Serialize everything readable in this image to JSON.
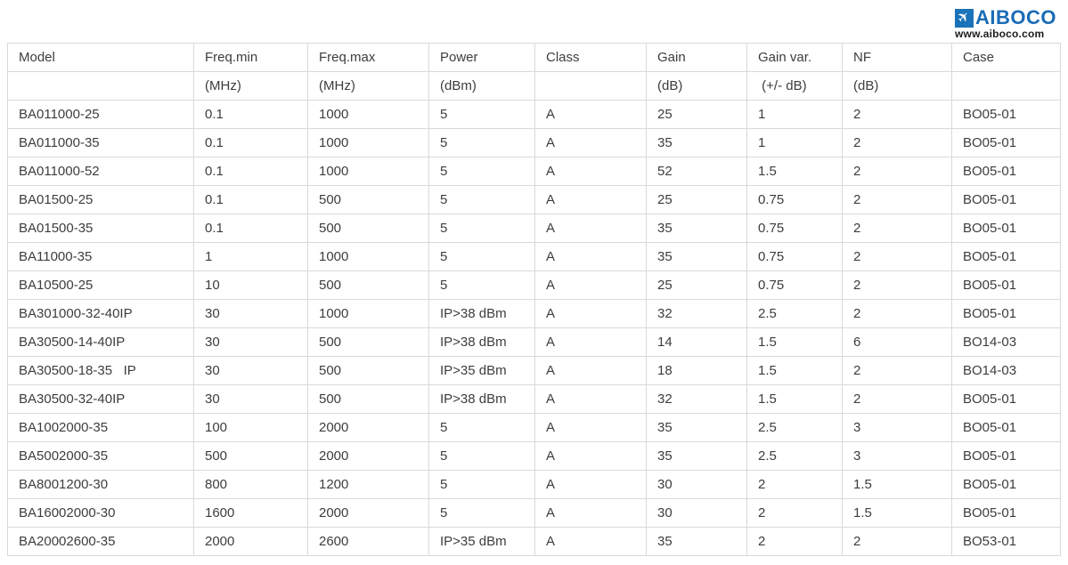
{
  "logo": {
    "brand": "AIBOCO",
    "website": "www.aiboco.com",
    "airplane_icon": "✈",
    "brand_color": "#1a6cb5",
    "mark_background": "#1a72b8"
  },
  "table": {
    "columns": [
      {
        "label": "Model",
        "unit": ""
      },
      {
        "label": "Freq.min",
        "unit": "(MHz)"
      },
      {
        "label": "Freq.max",
        "unit": "(MHz)"
      },
      {
        "label": "Power",
        "unit": "(dBm)"
      },
      {
        "label": "Class",
        "unit": ""
      },
      {
        "label": "Gain",
        "unit": "(dB)"
      },
      {
        "label": "Gain var.",
        "unit": " (+/- dB)"
      },
      {
        "label": "NF",
        "unit": "(dB)"
      },
      {
        "label": "Case",
        "unit": ""
      }
    ],
    "rows": [
      [
        "BA011000-25",
        "0.1",
        "1000",
        "5",
        "A",
        "25",
        "1",
        "2",
        "BO05-01"
      ],
      [
        "BA011000-35",
        "0.1",
        "1000",
        "5",
        "A",
        "35",
        "1",
        "2",
        "BO05-01"
      ],
      [
        "BA011000-52",
        "0.1",
        "1000",
        "5",
        "A",
        "52",
        "1.5",
        "2",
        "BO05-01"
      ],
      [
        "BA01500-25",
        "0.1",
        "500",
        "5",
        "A",
        "25",
        "0.75",
        "2",
        "BO05-01"
      ],
      [
        "BA01500-35",
        "0.1",
        "500",
        "5",
        "A",
        "35",
        "0.75",
        "2",
        "BO05-01"
      ],
      [
        "BA11000-35",
        "1",
        "1000",
        "5",
        "A",
        "35",
        "0.75",
        "2",
        "BO05-01"
      ],
      [
        "BA10500-25",
        "10",
        "500",
        "5",
        "A",
        "25",
        "0.75",
        "2",
        "BO05-01"
      ],
      [
        "BA301000-32-40IP",
        "30",
        "1000",
        "IP>38 dBm",
        "A",
        "32",
        "2.5",
        "2",
        "BO05-01"
      ],
      [
        "BA30500-14-40IP",
        "30",
        "500",
        "IP>38 dBm",
        "A",
        "14",
        "1.5",
        "6",
        "BO14-03"
      ],
      [
        "BA30500-18-35   IP",
        "30",
        "500",
        "IP>35 dBm",
        "A",
        "18",
        "1.5",
        "2",
        "BO14-03"
      ],
      [
        "BA30500-32-40IP",
        "30",
        "500",
        "IP>38 dBm",
        "A",
        "32",
        "1.5",
        "2",
        "BO05-01"
      ],
      [
        "BA1002000-35",
        "100",
        "2000",
        "5",
        "A",
        "35",
        "2.5",
        "3",
        "BO05-01"
      ],
      [
        "BA5002000-35",
        "500",
        "2000",
        "5",
        "A",
        "35",
        "2.5",
        "3",
        "BO05-01"
      ],
      [
        "BA8001200-30",
        "800",
        "1200",
        "5",
        "A",
        "30",
        "2",
        "1.5",
        "BO05-01"
      ],
      [
        "BA16002000-30",
        "1600",
        "2000",
        "5",
        "A",
        "30",
        "2",
        "1.5",
        "BO05-01"
      ],
      [
        "BA20002600-35",
        "2000",
        "2600",
        "IP>35 dBm",
        "A",
        "35",
        "2",
        "2",
        "BO53-01"
      ]
    ]
  }
}
